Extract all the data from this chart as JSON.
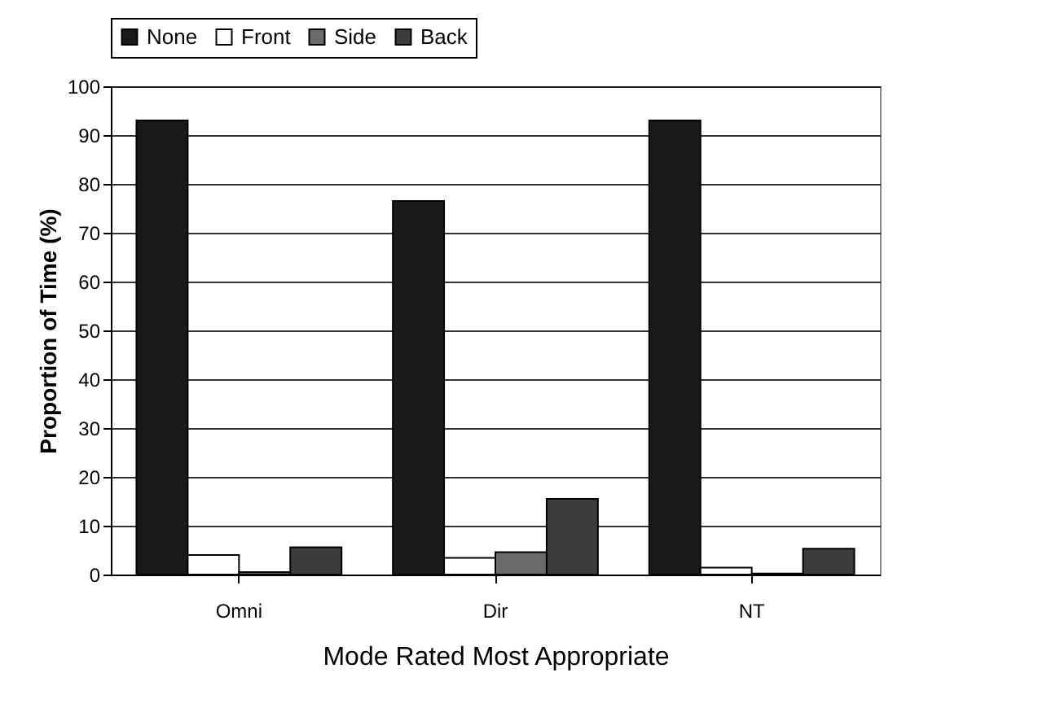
{
  "chart_data": {
    "type": "bar",
    "xlabel": "Mode Rated Most Appropriate",
    "ylabel": "Proportion of Time (%)",
    "categories": [
      "Omni",
      "Dir",
      "NT"
    ],
    "series": [
      {
        "name": "None",
        "color": "#1a1a1a",
        "values": [
          93,
          76.5,
          93
        ]
      },
      {
        "name": "Front",
        "color": "#ffffff",
        "values": [
          4,
          3.4,
          1.4
        ]
      },
      {
        "name": "Side",
        "color": "#6b6b6b",
        "values": [
          0.5,
          4.6,
          0.2
        ]
      },
      {
        "name": "Back",
        "color": "#3c3c3c",
        "values": [
          5.6,
          15.5,
          5.3
        ]
      }
    ],
    "ylim": [
      0,
      100
    ],
    "yticks": [
      0,
      10,
      20,
      30,
      40,
      50,
      60,
      70,
      80,
      90,
      100
    ],
    "grid": "y",
    "legend": "top"
  }
}
